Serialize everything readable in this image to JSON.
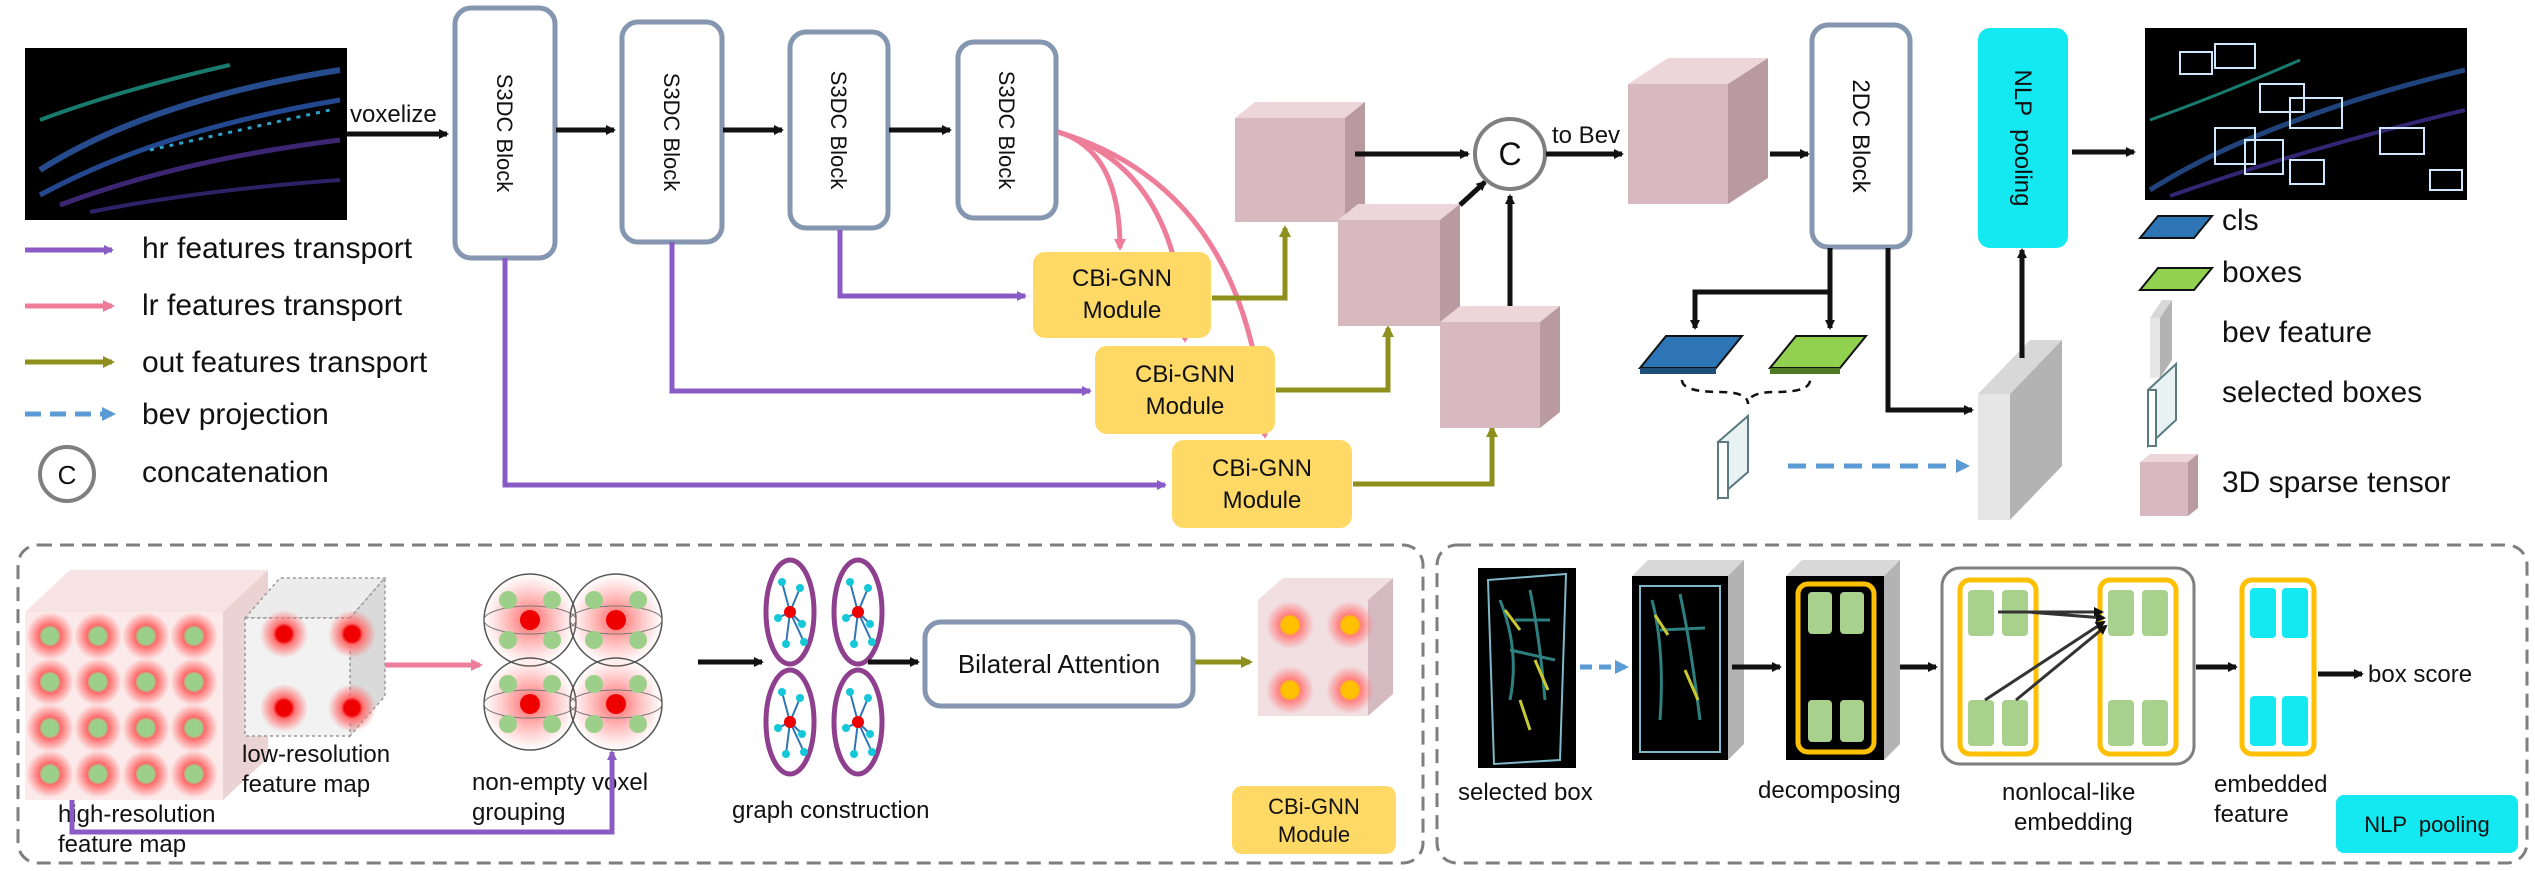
{
  "top": {
    "voxelize": "voxelize",
    "s3dc_blocks": [
      "S3DC Block",
      "S3DC Block",
      "S3DC Block",
      "S3DC Block"
    ],
    "cbi_gnn": [
      {
        "line1": "CBi-GNN",
        "line2": "Module"
      },
      {
        "line1": "CBi-GNN",
        "line2": "Module"
      },
      {
        "line1": "CBi-GNN",
        "line2": "Module"
      }
    ],
    "concat_symbol": "C",
    "to_bev": "to Bev",
    "block_2dc": "2DC Block",
    "nlp_pooling": "NLP  pooling"
  },
  "legend_left": {
    "hr": "hr features transport",
    "lr": "lr features transport",
    "out": "out features transport",
    "bev": "bev projection",
    "concat_symbol": "C",
    "concat": "concatenation"
  },
  "legend_right": {
    "cls": "cls",
    "boxes": "boxes",
    "bev_feature": "bev feature",
    "selected_boxes": "selected boxes",
    "sparse": "3D sparse tensor"
  },
  "bottom_left": {
    "high_res_1": "high-resolution",
    "high_res_2": "feature map",
    "low_res_1": "low-resolution",
    "low_res_2": "feature map",
    "nonempty_1": "non-empty voxel",
    "nonempty_2": "grouping",
    "graph": "graph construction",
    "bilateral": "Bilateral Attention",
    "module_1": "CBi-GNN",
    "module_2": "Module"
  },
  "bottom_right": {
    "selected_box": "selected box",
    "decomposing": "decomposing",
    "nonlocal_1": "nonlocal-like",
    "nonlocal_2": "embedding",
    "embedded_1": "embedded",
    "embedded_2": "feature",
    "box_score": "box score",
    "nlp_pooling": "NLP  pooling"
  },
  "colors": {
    "hr": "#8a5bc4",
    "lr": "#ee7d99",
    "out": "#8f8f1e",
    "bev": "#5b9bd5",
    "block_border": "#8496b0",
    "gnn_fill": "#ffd966",
    "nlp_fill": "#14e8f0",
    "cube_front": "#d9b9c0",
    "cls": "#2e75b6",
    "boxes": "#92d050"
  }
}
